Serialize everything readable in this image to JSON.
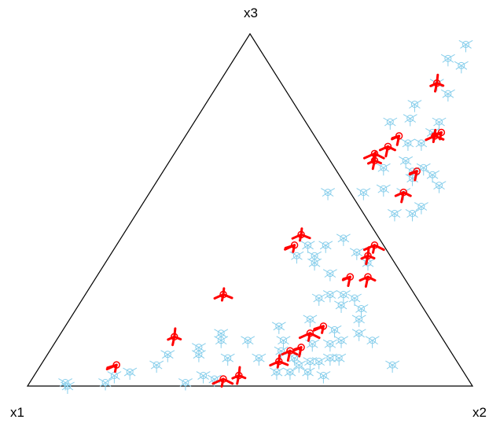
{
  "chart_data": {
    "type": "scatter",
    "subtype": "ternary-star-glyphs",
    "title": "",
    "vertex_labels": {
      "x1": "x1",
      "x2": "x2",
      "x3": "x3"
    },
    "colors": {
      "frame": "#000000",
      "blue": "#87ceeb",
      "red": "#ff0000"
    },
    "grid": false,
    "series": [
      {
        "color_name": "blue",
        "points": [
          {
            "x2": 0.5,
            "x3": 0.97
          },
          {
            "x2": 0.48,
            "x3": 0.93
          },
          {
            "x2": 0.52,
            "x3": 0.91
          },
          {
            "x2": 0.49,
            "x3": 0.86
          },
          {
            "x2": 0.53,
            "x3": 0.83
          },
          {
            "x2": 0.47,
            "x3": 0.8
          },
          {
            "x2": 0.44,
            "x3": 0.75
          },
          {
            "x2": 0.48,
            "x3": 0.76
          },
          {
            "x2": 0.55,
            "x3": 0.75
          },
          {
            "x2": 0.55,
            "x3": 0.72
          },
          {
            "x2": 0.51,
            "x3": 0.69
          },
          {
            "x2": 0.54,
            "x3": 0.69
          },
          {
            "x2": 0.53,
            "x3": 0.64
          },
          {
            "x2": 0.49,
            "x3": 0.62
          },
          {
            "x2": 0.56,
            "x3": 0.61
          },
          {
            "x2": 0.58,
            "x3": 0.62
          },
          {
            "x2": 0.57,
            "x3": 0.59
          },
          {
            "x2": 0.61,
            "x3": 0.6
          },
          {
            "x2": 0.64,
            "x3": 0.57
          },
          {
            "x2": 0.4,
            "x3": 0.55
          },
          {
            "x2": 0.48,
            "x3": 0.55
          },
          {
            "x2": 0.52,
            "x3": 0.56
          },
          {
            "x2": 0.57,
            "x3": 0.55
          },
          {
            "x2": 0.63,
            "x3": 0.51
          },
          {
            "x2": 0.58,
            "x3": 0.49
          },
          {
            "x2": 0.62,
            "x3": 0.49
          },
          {
            "x2": 0.5,
            "x3": 0.42
          },
          {
            "x2": 0.43,
            "x3": 0.4
          },
          {
            "x2": 0.47,
            "x3": 0.4
          },
          {
            "x2": 0.42,
            "x3": 0.37
          },
          {
            "x2": 0.46,
            "x3": 0.37
          },
          {
            "x2": 0.55,
            "x3": 0.38
          },
          {
            "x2": 0.47,
            "x3": 0.35
          },
          {
            "x2": 0.52,
            "x3": 0.32
          },
          {
            "x2": 0.59,
            "x3": 0.35
          },
          {
            "x2": 0.53,
            "x3": 0.25
          },
          {
            "x2": 0.55,
            "x3": 0.26
          },
          {
            "x2": 0.58,
            "x3": 0.26
          },
          {
            "x2": 0.59,
            "x3": 0.23
          },
          {
            "x2": 0.61,
            "x3": 0.25
          },
          {
            "x2": 0.64,
            "x3": 0.22
          },
          {
            "x2": 0.54,
            "x3": 0.19
          },
          {
            "x2": 0.65,
            "x3": 0.19
          },
          {
            "x2": 0.67,
            "x3": 0.15
          },
          {
            "x2": 0.61,
            "x3": 0.16
          },
          {
            "x2": 0.48,
            "x3": 0.17
          },
          {
            "x2": 0.36,
            "x3": 0.15
          },
          {
            "x2": 0.37,
            "x3": 0.13
          },
          {
            "x2": 0.43,
            "x3": 0.13
          },
          {
            "x2": 0.51,
            "x3": 0.13
          },
          {
            "x2": 0.58,
            "x3": 0.12
          },
          {
            "x2": 0.62,
            "x3": 0.12
          },
          {
            "x2": 0.64,
            "x3": 0.13
          },
          {
            "x2": 0.71,
            "x3": 0.13
          },
          {
            "x2": 0.33,
            "x3": 0.11
          },
          {
            "x2": 0.27,
            "x3": 0.09
          },
          {
            "x2": 0.26,
            "x3": 0.06
          },
          {
            "x2": 0.34,
            "x3": 0.09
          },
          {
            "x2": 0.41,
            "x3": 0.08
          },
          {
            "x2": 0.48,
            "x3": 0.08
          },
          {
            "x2": 0.52,
            "x3": 0.1
          },
          {
            "x2": 0.56,
            "x3": 0.08
          },
          {
            "x2": 0.58,
            "x3": 0.06
          },
          {
            "x2": 0.6,
            "x3": 0.07
          },
          {
            "x2": 0.62,
            "x3": 0.07
          },
          {
            "x2": 0.64,
            "x3": 0.08
          },
          {
            "x2": 0.66,
            "x3": 0.08
          },
          {
            "x2": 0.57,
            "x3": 0.04
          },
          {
            "x2": 0.54,
            "x3": 0.04
          },
          {
            "x2": 0.61,
            "x3": 0.04
          },
          {
            "x2": 0.65,
            "x3": 0.03
          },
          {
            "x2": 0.79,
            "x3": 0.06
          },
          {
            "x2": 0.18,
            "x3": 0.03
          },
          {
            "x2": 0.21,
            "x3": 0.04
          },
          {
            "x2": 0.17,
            "x3": 0.01
          },
          {
            "x2": 0.09,
            "x3": 0.0
          },
          {
            "x2": 0.08,
            "x3": 0.01
          },
          {
            "x2": 0.35,
            "x3": 0.01
          },
          {
            "x2": 0.38,
            "x3": 0.03
          },
          {
            "x2": 0.41,
            "x3": 0.02
          }
        ]
      },
      {
        "color_name": "red",
        "points": [
          {
            "x2": 0.49,
            "x3": 0.86
          },
          {
            "x2": 0.48,
            "x3": 0.71
          },
          {
            "x2": 0.47,
            "x3": 0.68
          },
          {
            "x2": 0.56,
            "x3": 0.71
          },
          {
            "x2": 0.57,
            "x3": 0.72
          },
          {
            "x2": 0.45,
            "x3": 0.66
          },
          {
            "x2": 0.46,
            "x3": 0.64
          },
          {
            "x2": 0.57,
            "x3": 0.61
          },
          {
            "x2": 0.57,
            "x3": 0.55
          },
          {
            "x2": 0.4,
            "x3": 0.43
          },
          {
            "x2": 0.4,
            "x3": 0.4
          },
          {
            "x2": 0.58,
            "x3": 0.4
          },
          {
            "x2": 0.58,
            "x3": 0.37
          },
          {
            "x2": 0.57,
            "x3": 0.31
          },
          {
            "x2": 0.61,
            "x3": 0.31
          },
          {
            "x2": 0.31,
            "x3": 0.26
          },
          {
            "x2": 0.58,
            "x3": 0.17
          },
          {
            "x2": 0.56,
            "x3": 0.15
          },
          {
            "x2": 0.26,
            "x3": 0.14
          },
          {
            "x2": 0.56,
            "x3": 0.11
          },
          {
            "x2": 0.54,
            "x3": 0.1
          },
          {
            "x2": 0.53,
            "x3": 0.07
          },
          {
            "x2": 0.17,
            "x3": 0.06
          },
          {
            "x2": 0.43,
            "x3": 0.02
          },
          {
            "x2": 0.46,
            "x3": 0.03
          }
        ]
      }
    ]
  }
}
